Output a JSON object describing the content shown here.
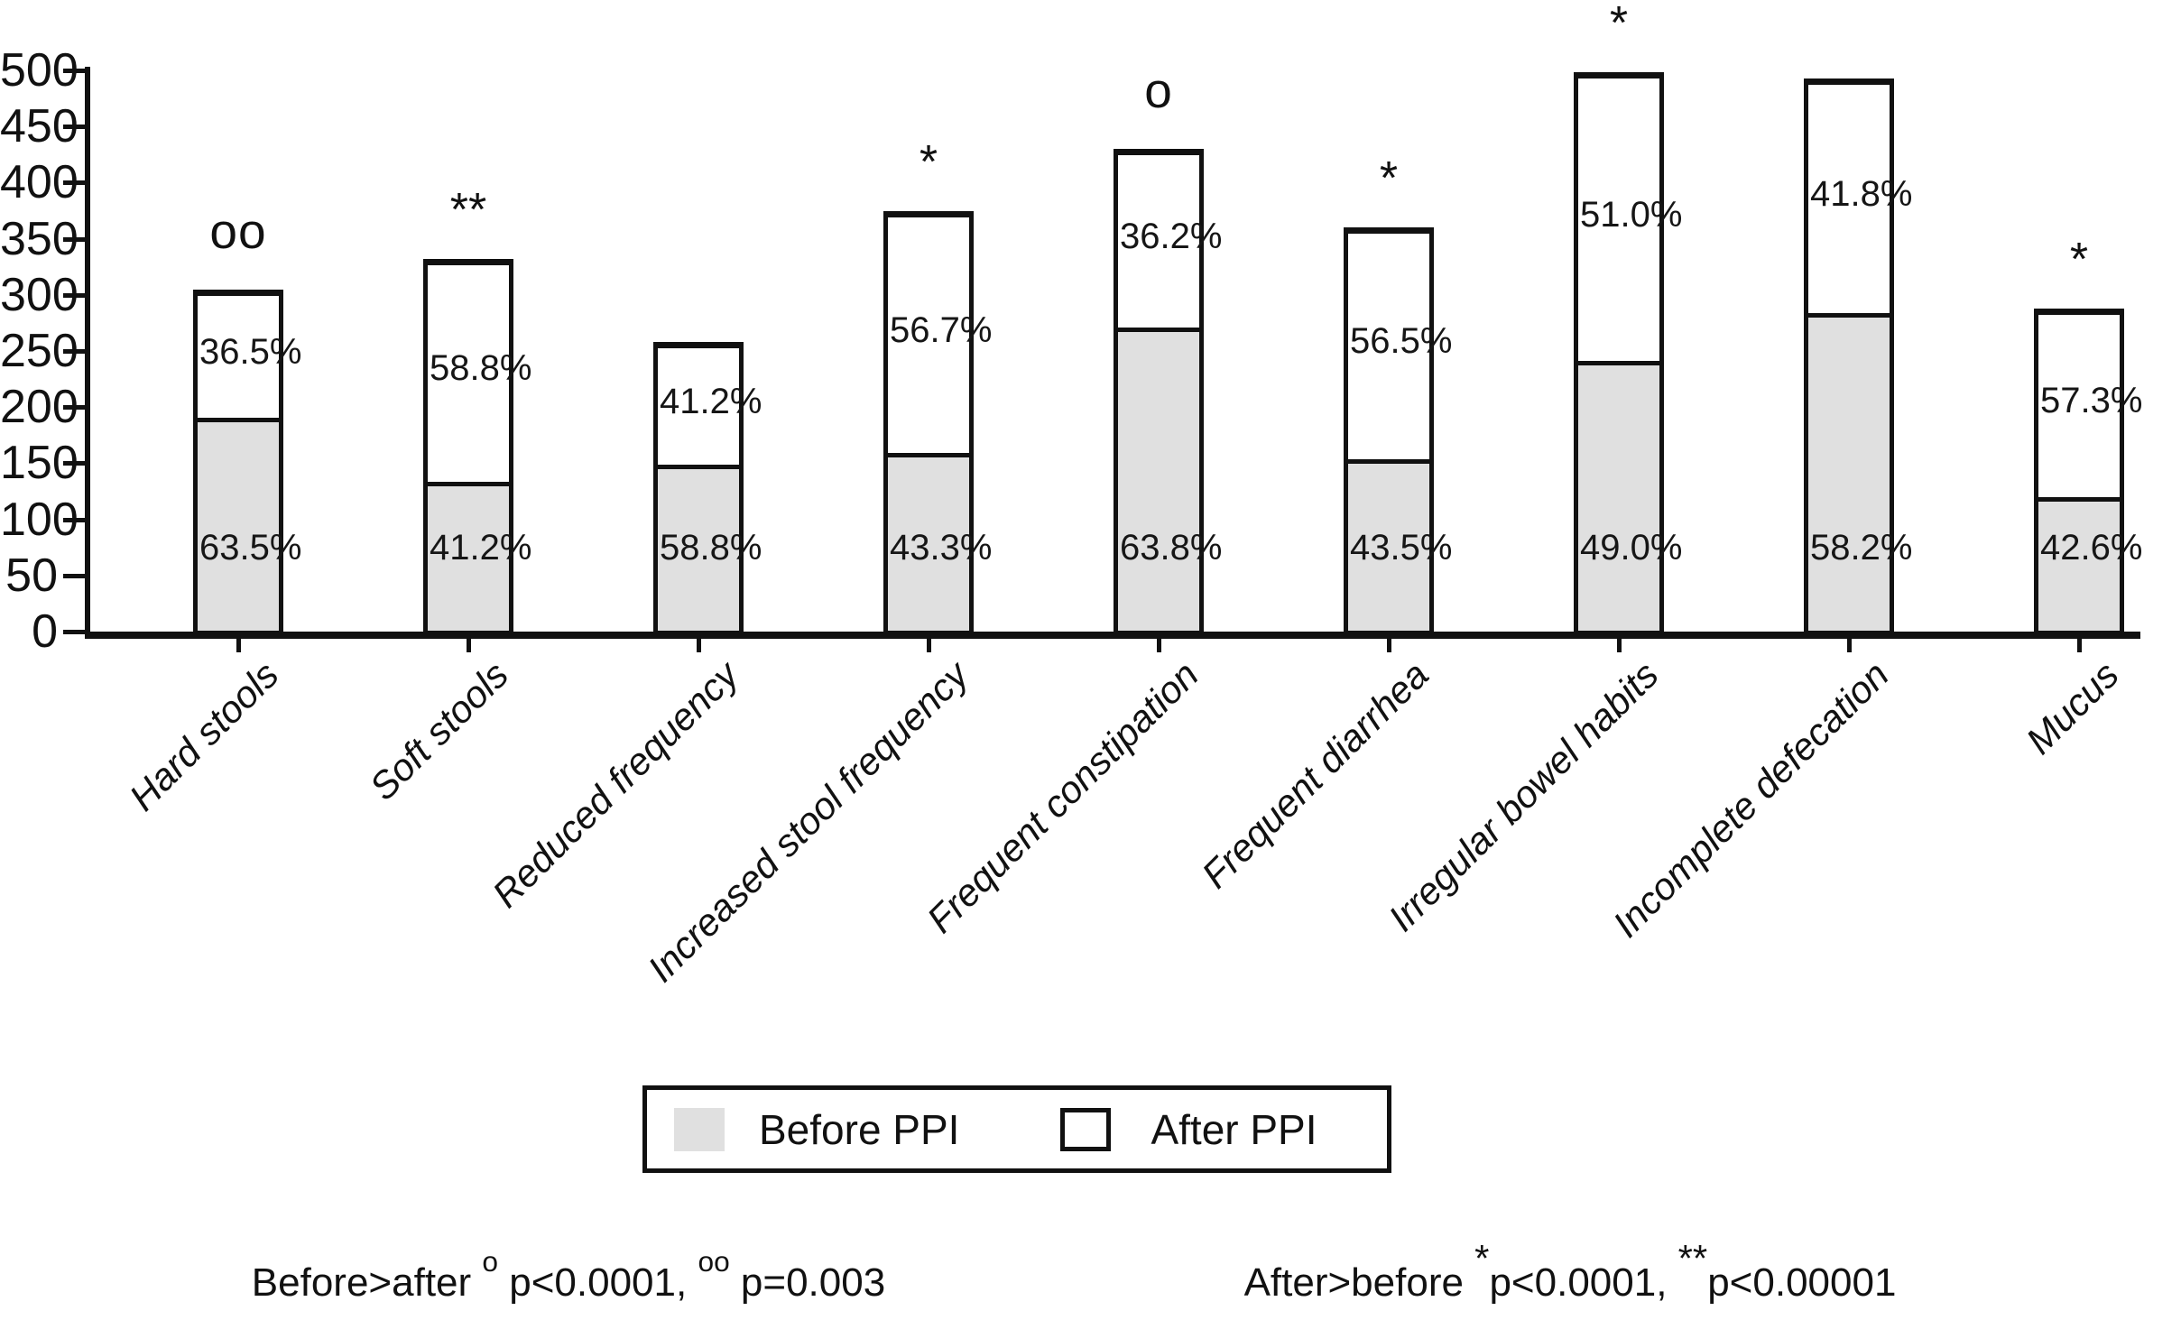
{
  "figure": {
    "background": "#ffffff",
    "ink": "#111111"
  },
  "chart_data": {
    "type": "bar",
    "stacked": true,
    "title": "",
    "xlabel": "",
    "ylabel": "",
    "ylim": [
      0,
      500
    ],
    "yticks": [
      0,
      50,
      100,
      150,
      200,
      250,
      300,
      350,
      400,
      450,
      500
    ],
    "grid": false,
    "legend_position": "bottom-center",
    "categories": [
      "Hard stools",
      "Soft stools",
      "Reduced frequency",
      "Increased stool frequency",
      "Frequent constipation",
      "Frequent diarrhea",
      "Irregular bowel habits",
      "Incomplete defecation",
      "Mucus"
    ],
    "series": [
      {
        "name": "Before PPI",
        "fill": "#e0e0e0",
        "values": [
          194,
          137,
          152,
          162,
          274,
          157,
          244,
          287,
          123
        ],
        "pct_labels": [
          "63.5%",
          "41.2%",
          "58.8%",
          "43.3%",
          "63.8%",
          "43.5%",
          "49.0%",
          "58.2%",
          "42.6%"
        ]
      },
      {
        "name": "After PPI",
        "fill": "#ffffff",
        "values": [
          111,
          195,
          106,
          213,
          156,
          203,
          254,
          206,
          165
        ],
        "pct_labels": [
          "36.5%",
          "58.8%",
          "41.2%",
          "56.7%",
          "36.2%",
          "56.5%",
          "51.0%",
          "41.8%",
          "57.3%"
        ]
      }
    ],
    "totals": [
      305,
      332,
      258,
      375,
      430,
      360,
      498,
      493,
      288
    ],
    "significance_markers": [
      "oo",
      "**",
      "",
      "*",
      "o",
      "*",
      "*",
      "",
      "*"
    ],
    "legend": [
      {
        "label": "Before PPI",
        "fill": "#e0e0e0",
        "border": "none"
      },
      {
        "label": "After PPI",
        "fill": "#ffffff",
        "border": "#111111"
      }
    ],
    "footnotes": [
      {
        "id": "before-greater",
        "segments": [
          {
            "t": "Before>after "
          },
          {
            "t": "o",
            "sup": "circ"
          },
          {
            "t": " p<0.0001, "
          },
          {
            "t": "oo",
            "sup": "circ"
          },
          {
            "t": " p=0.003"
          }
        ]
      },
      {
        "id": "after-greater",
        "segments": [
          {
            "t": "After>before "
          },
          {
            "t": "*",
            "sup": "star"
          },
          {
            "t": "p<0.0001, "
          },
          {
            "t": "**",
            "sup": "star"
          },
          {
            "t": "p<0.00001"
          }
        ]
      }
    ]
  }
}
